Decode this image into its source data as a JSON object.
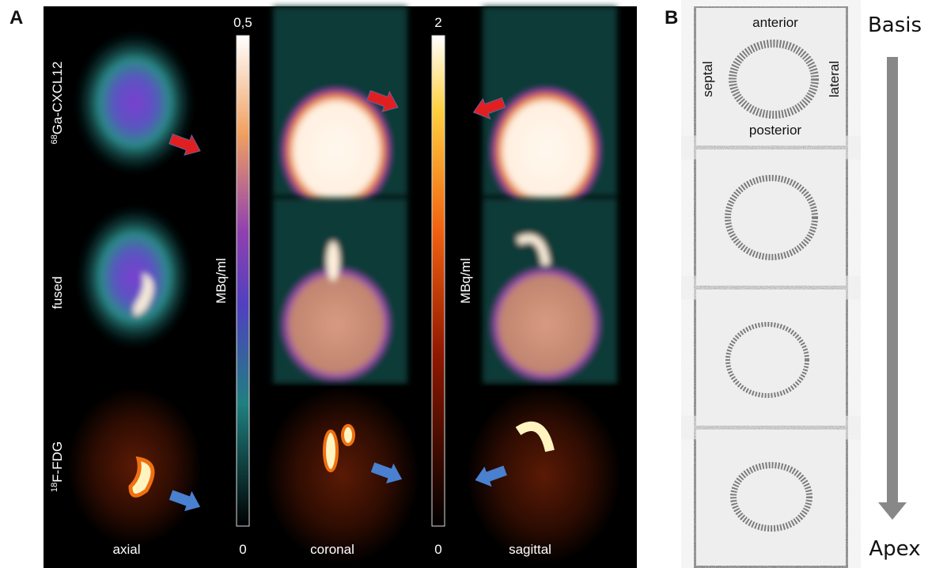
{
  "panel_a": {
    "label": "A",
    "row_labels": [
      {
        "sup": "68",
        "name": "Ga-CXCL12"
      },
      {
        "name": "fused"
      },
      {
        "sup": "18",
        "name": "F-FDG"
      }
    ],
    "column_labels": [
      "axial",
      "coronal",
      "sagittal"
    ],
    "colorbars": [
      {
        "max": "0,5",
        "min": "0",
        "unit": "MBq/ml"
      },
      {
        "max": "2",
        "min": "0",
        "unit": "MBq/ml"
      }
    ]
  },
  "panel_b": {
    "label": "B",
    "orientation": {
      "top": "anterior",
      "left": "septal",
      "right": "lateral",
      "bottom": "posterior"
    },
    "start": "Basis",
    "end": "Apex"
  }
}
